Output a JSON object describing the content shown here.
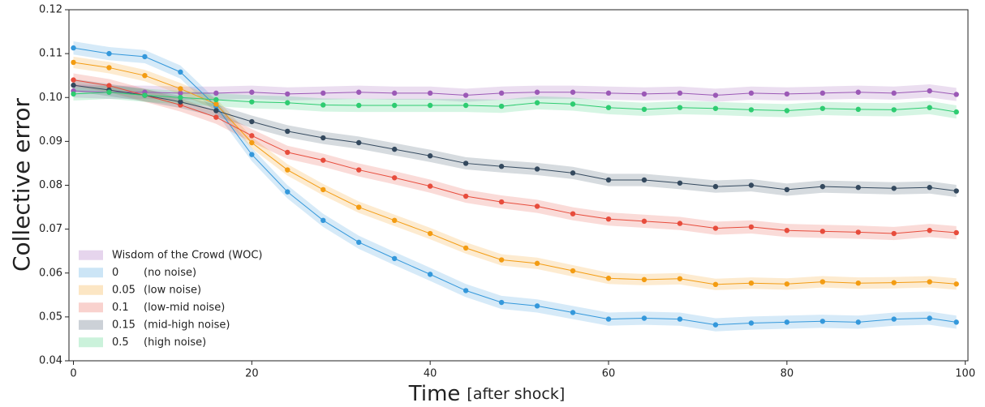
{
  "chart_data": {
    "type": "line",
    "ylabel": "Collective error",
    "xlabel": "Time",
    "xlabel_unit": "[after shock]",
    "x": [
      0,
      4,
      8,
      12,
      16,
      20,
      24,
      28,
      32,
      36,
      40,
      44,
      48,
      52,
      56,
      60,
      64,
      68,
      72,
      76,
      80,
      84,
      88,
      92,
      96,
      99
    ],
    "xlim": [
      -0.5,
      100.3
    ],
    "xticks": [
      0,
      20,
      40,
      60,
      80,
      100
    ],
    "ylim": [
      0.04,
      0.12
    ],
    "yticks": [
      0.04,
      0.05,
      0.06,
      0.07,
      0.08,
      0.09,
      {
        "value": 0.1,
        "label": "0.10"
      },
      0.11,
      0.12
    ],
    "legend": "lower left",
    "series": [
      {
        "name": "Wisdom of the Crowd (WOC)",
        "color": "#9b59b6",
        "error": 0.0015,
        "values": [
          0.1015,
          0.1012,
          0.1012,
          0.101,
          0.101,
          0.1012,
          0.1008,
          0.101,
          0.1012,
          0.101,
          0.101,
          0.1005,
          0.101,
          0.1012,
          0.1012,
          0.101,
          0.1008,
          0.101,
          0.1005,
          0.101,
          0.1008,
          0.101,
          0.1012,
          0.101,
          0.1015,
          0.1007
        ]
      },
      {
        "name": "0",
        "note": "(no noise)",
        "color": "#3498db",
        "error": 0.0015,
        "values": [
          0.1113,
          0.11,
          0.1093,
          0.1058,
          0.098,
          0.087,
          0.0785,
          0.072,
          0.067,
          0.0633,
          0.0597,
          0.056,
          0.0533,
          0.0525,
          0.051,
          0.0495,
          0.0497,
          0.0495,
          0.0482,
          0.0486,
          0.0488,
          0.049,
          0.0488,
          0.0495,
          0.0497,
          0.0488
        ]
      },
      {
        "name": "0.05",
        "note": "(low noise)",
        "color": "#f39c12",
        "error": 0.0013,
        "values": [
          0.108,
          0.1068,
          0.105,
          0.102,
          0.0985,
          0.0897,
          0.0835,
          0.079,
          0.075,
          0.072,
          0.069,
          0.0657,
          0.063,
          0.0622,
          0.0605,
          0.0588,
          0.0585,
          0.0587,
          0.0574,
          0.0577,
          0.0575,
          0.058,
          0.0577,
          0.0578,
          0.058,
          0.0575
        ]
      },
      {
        "name": "0.1",
        "note": "(low-mid noise)",
        "color": "#e74c3c",
        "error": 0.0015,
        "values": [
          0.104,
          0.1027,
          0.1005,
          0.0983,
          0.0955,
          0.0913,
          0.0875,
          0.0857,
          0.0835,
          0.0817,
          0.0798,
          0.0775,
          0.0762,
          0.0752,
          0.0735,
          0.0723,
          0.0718,
          0.0713,
          0.0702,
          0.0705,
          0.0697,
          0.0695,
          0.0693,
          0.069,
          0.0697,
          0.0692
        ]
      },
      {
        "name": "0.15",
        "note": "(mid-high noise)",
        "color": "#34495e",
        "error": 0.0014,
        "values": [
          0.1028,
          0.1017,
          0.1005,
          0.099,
          0.097,
          0.0945,
          0.0923,
          0.0908,
          0.0897,
          0.0882,
          0.0867,
          0.085,
          0.0843,
          0.0837,
          0.0828,
          0.0812,
          0.0812,
          0.0805,
          0.0797,
          0.08,
          0.079,
          0.0797,
          0.0795,
          0.0793,
          0.0795,
          0.0787
        ]
      },
      {
        "name": "0.5",
        "note": "(high noise)",
        "color": "#2ecc71",
        "error": 0.0015,
        "values": [
          0.1008,
          0.1012,
          0.1005,
          0.1,
          0.0995,
          0.099,
          0.0988,
          0.0983,
          0.0982,
          0.0982,
          0.0982,
          0.0982,
          0.098,
          0.0988,
          0.0985,
          0.0977,
          0.0973,
          0.0977,
          0.0975,
          0.0972,
          0.097,
          0.0975,
          0.0973,
          0.0972,
          0.0977,
          0.0967
        ]
      }
    ]
  }
}
